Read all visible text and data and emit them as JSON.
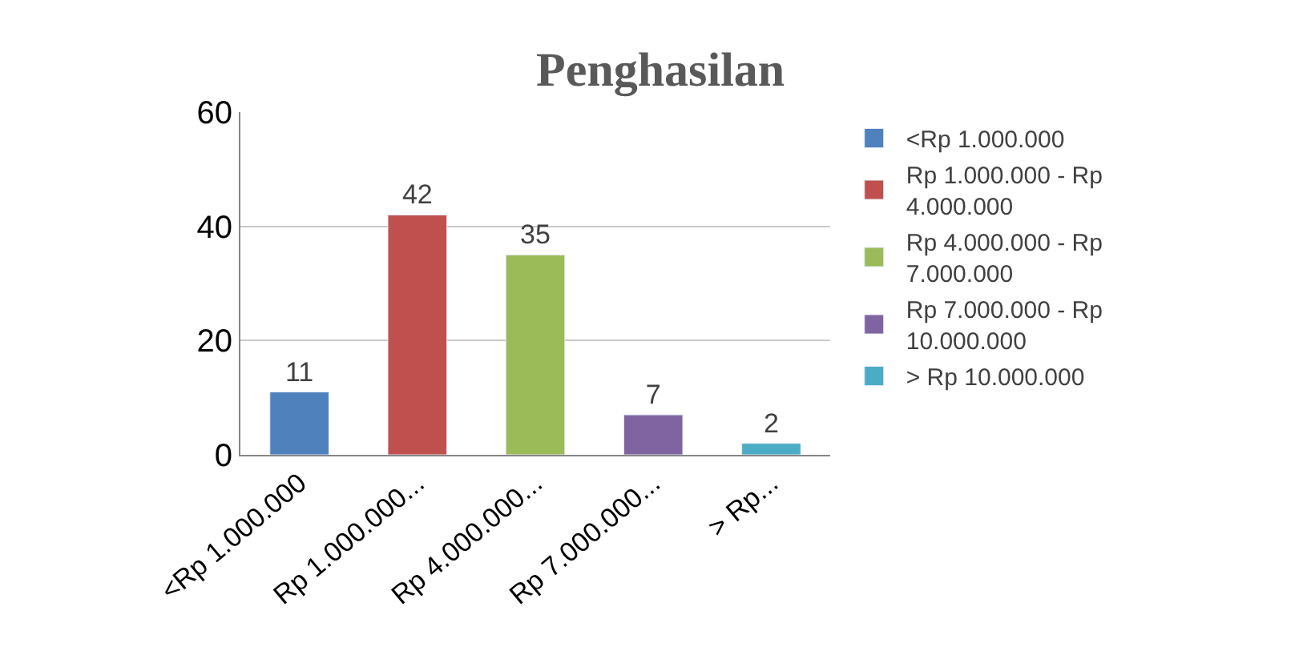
{
  "chart_data": {
    "type": "bar",
    "title": "Penghasilan",
    "categories": [
      "<Rp 1.000.000",
      "Rp 1.000.000...",
      "Rp 4.000.000...",
      "Rp 7.000.000...",
      "> Rp..."
    ],
    "series": [
      {
        "name": "<Rp 1.000.000",
        "color": "#4f81bd",
        "values": [
          11,
          null,
          null,
          null,
          null
        ]
      },
      {
        "name": "Rp 1.000.000 - Rp 4.000.000",
        "color": "#c0504d",
        "values": [
          null,
          42,
          null,
          null,
          null
        ]
      },
      {
        "name": "Rp 4.000.000 - Rp 7.000.000",
        "color": "#9bbb59",
        "values": [
          null,
          null,
          35,
          null,
          null
        ]
      },
      {
        "name": "Rp 7.000.000 - Rp 10.000.000",
        "color": "#8064a2",
        "values": [
          null,
          null,
          null,
          7,
          null
        ]
      },
      {
        "name": "> Rp 10.000.000",
        "color": "#4bacc6",
        "values": [
          null,
          null,
          null,
          null,
          2
        ]
      }
    ],
    "ylim": [
      0,
      60
    ],
    "yticks": [
      0,
      20,
      40,
      60
    ],
    "grid": "y",
    "data_labels": true,
    "legend": "right"
  }
}
